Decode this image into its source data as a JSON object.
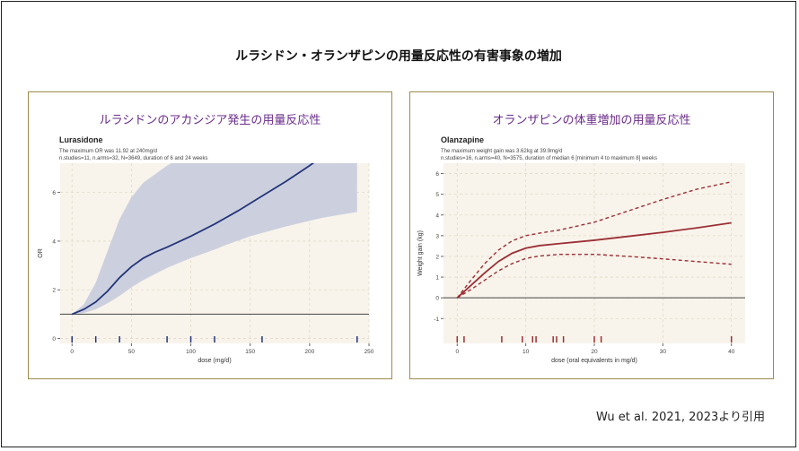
{
  "slide": {
    "title": "ルラシドン・オランザピンの用量反応性の有害事象の増加",
    "citation": "Wu et al. 2021, 2023より引用"
  },
  "colors": {
    "panel_border": "#a0894a",
    "heading_purple": "#6a2b8a",
    "plot_background": "#f8f4ec",
    "lurasidone_line": "#23357a",
    "lurasidone_band": "#c9cddd",
    "olanzapine_line": "#9c2f35"
  },
  "chart_data": [
    {
      "type": "line",
      "heading": "ルラシドンのアカシジア発生の用量反応性",
      "title": "Lurasidone",
      "subtitle1": "The maximum OR was 11.92 at 240mg/d",
      "subtitle2": "n.studies=11, n.arms=32, N=3649, duration of 6 and 24 weeks",
      "xlabel": "dose (mg/d)",
      "ylabel": "OR",
      "xlim": [
        -10,
        250
      ],
      "ylim": [
        -0.2,
        7.2
      ],
      "xticks": [
        0,
        50,
        100,
        150,
        200,
        250
      ],
      "yticks": [
        0,
        2,
        4,
        6
      ],
      "reference_line": 1,
      "grid": true,
      "series": [
        {
          "style": "solid",
          "x": [
            0,
            10,
            20,
            30,
            40,
            50,
            60,
            70,
            80,
            100,
            120,
            140,
            160,
            180,
            200,
            210,
            218
          ],
          "y": [
            1,
            1.2,
            1.5,
            1.95,
            2.5,
            2.95,
            3.3,
            3.55,
            3.75,
            4.2,
            4.7,
            5.25,
            5.85,
            6.45,
            7.1,
            7.45,
            7.7
          ]
        }
      ],
      "band": {
        "x": [
          0,
          10,
          20,
          30,
          40,
          50,
          60,
          80,
          100,
          120,
          130,
          150,
          180,
          210,
          240
        ],
        "upper": [
          1,
          1.4,
          2.3,
          3.6,
          4.9,
          5.8,
          6.4,
          7.1,
          7.7,
          8.2,
          8.3,
          8.5,
          8.7,
          8.9,
          9.1
        ],
        "lower": [
          1,
          1.05,
          1.2,
          1.45,
          1.75,
          2.1,
          2.4,
          2.9,
          3.3,
          3.65,
          3.85,
          4.2,
          4.6,
          4.95,
          5.2
        ]
      },
      "rug": [
        0,
        20,
        40,
        80,
        100,
        120,
        160,
        240
      ]
    },
    {
      "type": "line",
      "heading": "オランザピンの体重増加の用量反応性",
      "title": "Olanzapine",
      "subtitle1": "The maximum weight gain was 3.62kg at 39.9mg/d",
      "subtitle2": "n.studies=16, n.arms=40, N=3575, duration of median 6 [minimum 4 to maximum 8] weeks",
      "xlabel": "dose (oral equivalents in mg/d)",
      "ylabel": "Weight gain (kg)",
      "xlim": [
        -2,
        42
      ],
      "ylim": [
        -2.2,
        6.5
      ],
      "xticks": [
        0,
        10,
        20,
        30,
        40
      ],
      "yticks": [
        -1,
        0,
        1,
        2,
        3,
        4,
        5,
        6
      ],
      "reference_line": 0,
      "grid": true,
      "series": [
        {
          "style": "solid",
          "x": [
            0,
            2,
            4,
            6,
            8,
            10,
            12,
            15,
            20,
            25,
            30,
            35,
            40
          ],
          "y": [
            0,
            0.6,
            1.2,
            1.75,
            2.15,
            2.4,
            2.52,
            2.62,
            2.78,
            2.97,
            3.16,
            3.38,
            3.62
          ]
        },
        {
          "style": "dashed",
          "x": [
            0,
            2,
            4,
            6,
            8,
            10,
            12,
            15,
            20,
            25,
            30,
            35,
            40
          ],
          "y": [
            0,
            0.85,
            1.65,
            2.3,
            2.75,
            3.0,
            3.12,
            3.28,
            3.65,
            4.2,
            4.75,
            5.25,
            5.6
          ]
        },
        {
          "style": "dashed",
          "x": [
            0,
            2,
            4,
            6,
            8,
            10,
            12,
            15,
            20,
            25,
            30,
            35,
            40
          ],
          "y": [
            0,
            0.4,
            0.85,
            1.3,
            1.65,
            1.9,
            2.02,
            2.1,
            2.1,
            2.0,
            1.88,
            1.75,
            1.62
          ]
        }
      ],
      "rug": [
        0,
        1,
        6.5,
        9.5,
        11,
        11.5,
        14,
        14.5,
        15.5,
        20,
        21,
        40
      ]
    }
  ]
}
